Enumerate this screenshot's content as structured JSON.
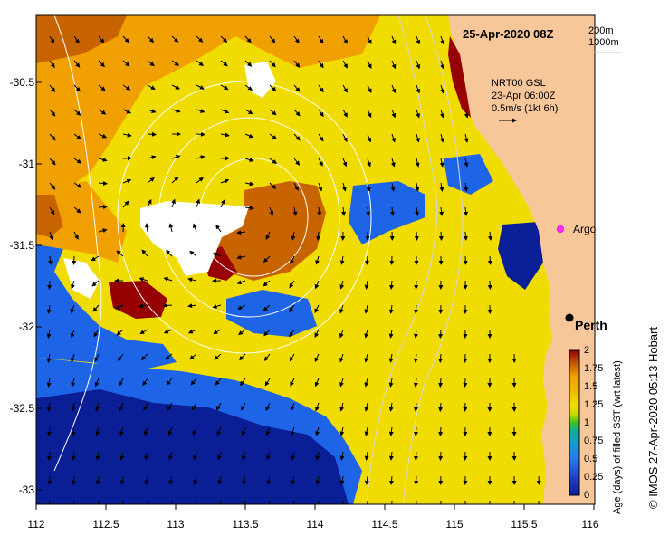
{
  "header": {
    "date": "25-Apr-2020 08Z",
    "isobath_1": "200m",
    "isobath_2": "1000m"
  },
  "current_legend": {
    "line1": "NRT00 GSL",
    "line2": "23-Apr 06:00Z",
    "line3": "0.5m/s (1kt 6h)"
  },
  "places": {
    "argo": "Argo",
    "perth": "Perth"
  },
  "axes": {
    "y_ticks": [
      "-30.5",
      "-31",
      "-31.5",
      "-32",
      "-32.5",
      "-33"
    ],
    "x_ticks": [
      "112",
      "112.5",
      "113",
      "113.5",
      "114",
      "114.5",
      "115",
      "115.5",
      "116"
    ]
  },
  "colorbar": {
    "title": "Age (days) of filled SST (wrt latest)",
    "ticks": [
      "2",
      "1.75",
      "1.5",
      "1.25",
      "1",
      "0.75",
      "0.5",
      "0.25",
      "0"
    ]
  },
  "credit": "© IMOS 27-Apr-2020 05:13 Hobart",
  "colors": {
    "land": "#f7c79a",
    "ocean_yellow": "#f0dc00",
    "orange": "#f0a000",
    "dark_orange": "#c86400",
    "maroon": "#960000",
    "blue": "#1e64e6",
    "navy": "#0a1e96"
  }
}
